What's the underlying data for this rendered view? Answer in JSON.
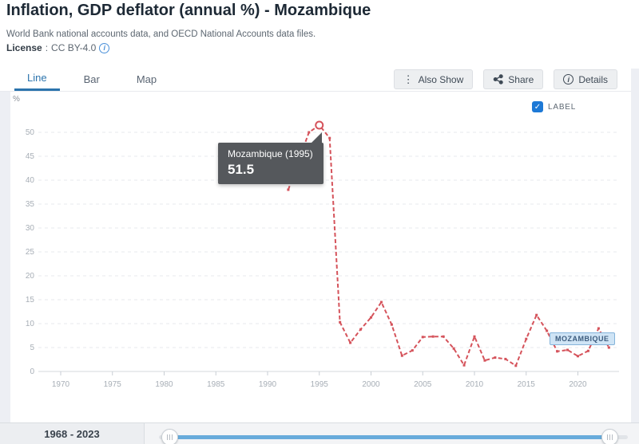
{
  "header": {
    "title": "Inflation, GDP deflator (annual %) - Mozambique",
    "source": "World Bank national accounts data, and OECD National Accounts data files.",
    "license_label": "License",
    "license_sep": " : ",
    "license_value": "CC BY-4.0",
    "info_glyph": "i"
  },
  "tabs": {
    "line": "Line",
    "bar": "Bar",
    "map": "Map"
  },
  "toolbar": {
    "also_show": "Also Show",
    "share": "Share",
    "details": "Details",
    "kebab_glyph": "⋮",
    "details_info_glyph": "i"
  },
  "chart": {
    "unit": "%",
    "label_toggle": "LABEL",
    "checkmark": "✓",
    "series_badge": "MOZAMBIQUE",
    "tooltip_title": "Mozambique (1995)",
    "tooltip_value": "51.5"
  },
  "range_bar": {
    "range": "1968 - 2023"
  },
  "colors": {
    "accent_blue": "#2c74ad",
    "checkbox_blue": "#1d79d6",
    "slider_blue": "#68abdb",
    "tooltip_bg": "#55585c",
    "line_red": "#d5535b",
    "grid": "#e7eaee",
    "axis": "#d4d9de",
    "tick_text": "#a7aeb6"
  },
  "chart_data": {
    "type": "line",
    "title": "Inflation, GDP deflator (annual %) - Mozambique",
    "xlabel": "",
    "ylabel": "%",
    "xlim": [
      1968,
      2023
    ],
    "ylim": [
      0,
      52
    ],
    "x_ticks": [
      1970,
      1975,
      1980,
      1985,
      1990,
      1995,
      2000,
      2005,
      2010,
      2015,
      2020
    ],
    "y_ticks": [
      0,
      5,
      10,
      15,
      20,
      25,
      30,
      35,
      40,
      45,
      50
    ],
    "grid": true,
    "legend_position": "none",
    "series": [
      {
        "name": "Mozambique",
        "color": "#d5535b",
        "points": [
          [
            1992,
            38.0
          ],
          [
            1993,
            44.0
          ],
          [
            1994,
            50.0
          ],
          [
            1995,
            51.5
          ],
          [
            1996,
            48.8
          ],
          [
            1997,
            10.3
          ],
          [
            1998,
            6.0
          ],
          [
            1999,
            8.8
          ],
          [
            2000,
            11.3
          ],
          [
            2001,
            14.5
          ],
          [
            2002,
            9.8
          ],
          [
            2003,
            3.3
          ],
          [
            2004,
            4.4
          ],
          [
            2005,
            7.2
          ],
          [
            2006,
            7.3
          ],
          [
            2007,
            7.3
          ],
          [
            2008,
            4.8
          ],
          [
            2009,
            1.3
          ],
          [
            2010,
            7.3
          ],
          [
            2011,
            2.3
          ],
          [
            2012,
            2.9
          ],
          [
            2013,
            2.6
          ],
          [
            2014,
            1.2
          ],
          [
            2015,
            6.8
          ],
          [
            2016,
            11.8
          ],
          [
            2017,
            8.5
          ],
          [
            2018,
            4.2
          ],
          [
            2019,
            4.5
          ],
          [
            2020,
            3.2
          ],
          [
            2021,
            4.3
          ],
          [
            2022,
            9.0
          ],
          [
            2023,
            5.0
          ]
        ]
      }
    ],
    "highlight_point": {
      "year": 1995,
      "value": 51.5,
      "label": "Mozambique (1995)",
      "display": "51.5"
    }
  }
}
